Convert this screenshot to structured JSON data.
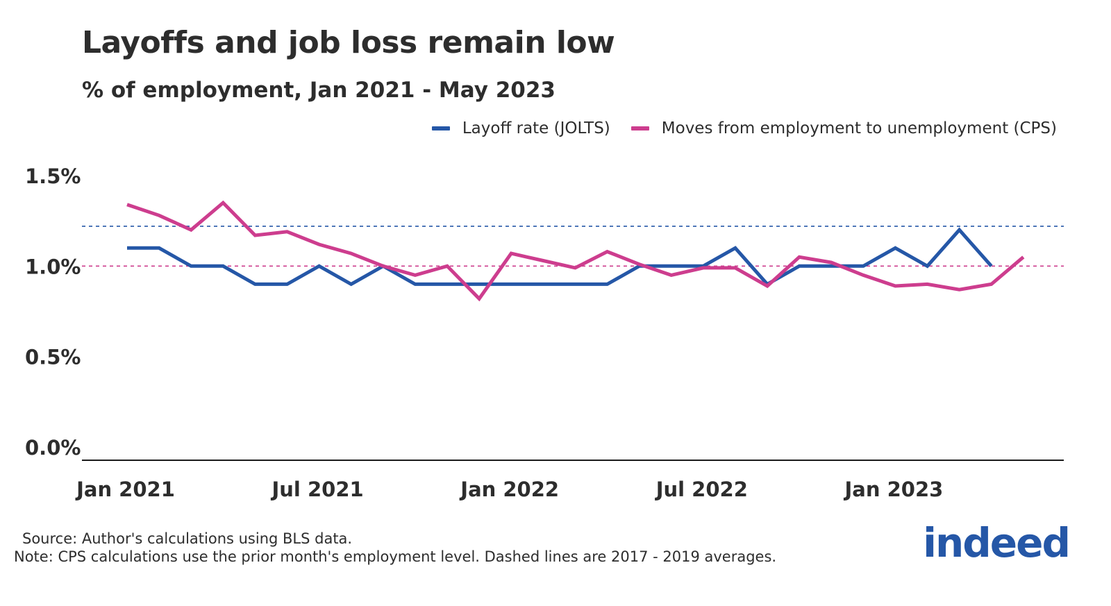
{
  "title": "Layoffs and job loss remain low",
  "subtitle": "% of employment, Jan 2021 - May 2023",
  "legend": {
    "jolts": "Layoff rate (JOLTS)",
    "cps": "Moves from employment to unemployment (CPS)"
  },
  "source": "Source: Author's calculations using BLS data.",
  "note": "Note: CPS calculations use the prior month's employment level. Dashed lines are 2017 - 2019 averages.",
  "logo": "indeed",
  "colors": {
    "jolts": "#2557a7",
    "cps": "#cd3d8e",
    "axis": "#1a1a1a",
    "text": "#2d2d2d"
  },
  "chart_data": {
    "type": "line",
    "title": "Layoffs and job loss remain low",
    "subtitle": "% of employment, Jan 2021 - May 2023",
    "ylim": [
      0,
      1.5
    ],
    "yticks": [
      0.0,
      0.5,
      1.0,
      1.5
    ],
    "ytick_labels": [
      "0.0%",
      "0.5%",
      "1.0%",
      "1.5%"
    ],
    "x_range": [
      "2021-01",
      "2023-07"
    ],
    "xtick_positions": [
      "2021-01",
      "2021-07",
      "2022-01",
      "2022-07",
      "2023-01"
    ],
    "xtick_labels": [
      "Jan 2021",
      "Jul 2021",
      "Jan 2022",
      "Jul 2022",
      "Jan 2023"
    ],
    "grid": false,
    "legend_position": "top-right",
    "x": [
      "2021-01",
      "2021-02",
      "2021-03",
      "2021-04",
      "2021-05",
      "2021-06",
      "2021-07",
      "2021-08",
      "2021-09",
      "2021-10",
      "2021-11",
      "2021-12",
      "2022-01",
      "2022-02",
      "2022-03",
      "2022-04",
      "2022-05",
      "2022-06",
      "2022-07",
      "2022-08",
      "2022-09",
      "2022-10",
      "2022-11",
      "2022-12",
      "2023-01",
      "2023-02",
      "2023-03",
      "2023-04",
      "2023-05"
    ],
    "series": [
      {
        "name": "Layoff rate (JOLTS)",
        "key": "jolts",
        "values": [
          1.1,
          1.1,
          1.0,
          1.0,
          0.9,
          0.9,
          1.0,
          0.9,
          1.0,
          0.9,
          0.9,
          0.9,
          0.9,
          0.9,
          0.9,
          0.9,
          1.0,
          1.0,
          1.0,
          1.1,
          0.9,
          1.0,
          1.0,
          1.0,
          1.1,
          1.0,
          1.2,
          1.0,
          null
        ]
      },
      {
        "name": "Moves from employment to unemployment (CPS)",
        "key": "cps",
        "values": [
          1.34,
          1.28,
          1.2,
          1.35,
          1.17,
          1.19,
          1.12,
          1.07,
          1.0,
          0.95,
          1.0,
          0.82,
          1.07,
          1.03,
          0.99,
          1.08,
          1.01,
          0.95,
          0.99,
          0.99,
          0.89,
          1.05,
          1.02,
          0.95,
          0.89,
          0.9,
          0.87,
          0.9,
          1.05
        ]
      }
    ],
    "reference_lines": [
      {
        "series": "jolts",
        "value": 1.22,
        "style": "dashed"
      },
      {
        "series": "cps",
        "value": 1.0,
        "style": "dashed"
      }
    ]
  }
}
